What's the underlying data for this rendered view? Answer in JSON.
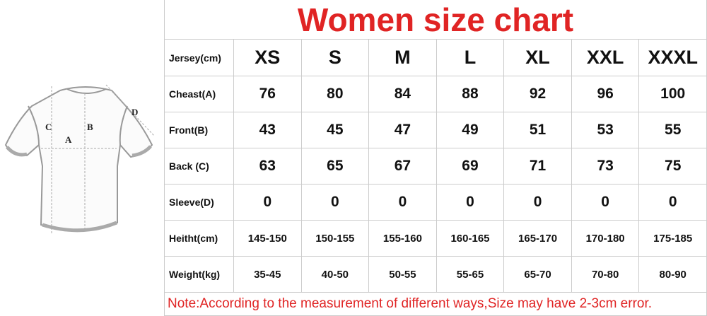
{
  "diagram": {
    "labels": [
      "A",
      "B",
      "C",
      "D"
    ]
  },
  "title": "Women size chart",
  "table": {
    "header": [
      "Jersey(cm)",
      "XS",
      "S",
      "M",
      "L",
      "XL",
      "XXL",
      "XXXL"
    ],
    "rows": [
      [
        "Cheast(A)",
        76,
        80,
        84,
        88,
        92,
        96,
        100
      ],
      [
        "Front(B)",
        43,
        45,
        47,
        49,
        51,
        53,
        55
      ],
      [
        "Back (C)",
        63,
        65,
        67,
        69,
        71,
        73,
        75
      ],
      [
        "Sleeve(D)",
        0,
        0,
        0,
        0,
        0,
        0,
        0
      ],
      [
        "Heitht(cm)",
        "145-150",
        "150-155",
        "155-160",
        "160-165",
        "165-170",
        "170-180",
        "175-185"
      ],
      [
        "Weight(kg)",
        "35-45",
        "40-50",
        "50-55",
        "55-65",
        "65-70",
        "70-80",
        "80-90"
      ]
    ]
  },
  "note": "Note:According to the measurement of different ways,Size may have 2-3cm error."
}
